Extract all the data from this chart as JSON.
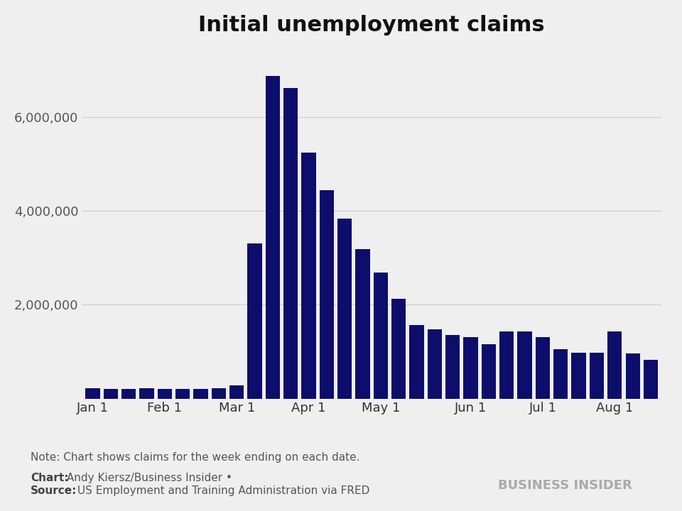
{
  "title": "Initial unemployment claims",
  "background_color": "#efefef",
  "bar_color": "#0d0d6b",
  "ylabel_color": "#555555",
  "grid_color": "#cccccc",
  "note_text": "Note: Chart shows claims for the week ending on each date.",
  "chart_credit_bold": "Chart:",
  "chart_credit_normal": " Andy Kiersz/Business Insider •",
  "source_bold": "Source:",
  "source_normal": " US Employment and Training Administration via FRED",
  "watermark": "BUSINESS INSIDER",
  "ylim": [
    0,
    7400000
  ],
  "yticks": [
    2000000,
    4000000,
    6000000
  ],
  "values": [
    214000,
    204000,
    212000,
    215000,
    203000,
    205000,
    211000,
    219000,
    282000,
    3307000,
    6867000,
    6615000,
    5237000,
    4442000,
    3839000,
    3176000,
    2687000,
    2126000,
    1566000,
    1480000,
    1360000,
    1310000,
    1160000,
    1430000,
    1427000,
    1310000,
    1050000,
    980000,
    971000,
    1434000,
    963000,
    830000
  ],
  "xtick_positions": [
    0,
    4,
    8,
    12,
    16,
    21,
    25,
    29
  ],
  "xtick_labels": [
    "Jan 1",
    "Feb 1",
    "Mar 1",
    "Apr 1",
    "May 1",
    "Jun 1",
    "Jul 1",
    "Aug 1"
  ]
}
